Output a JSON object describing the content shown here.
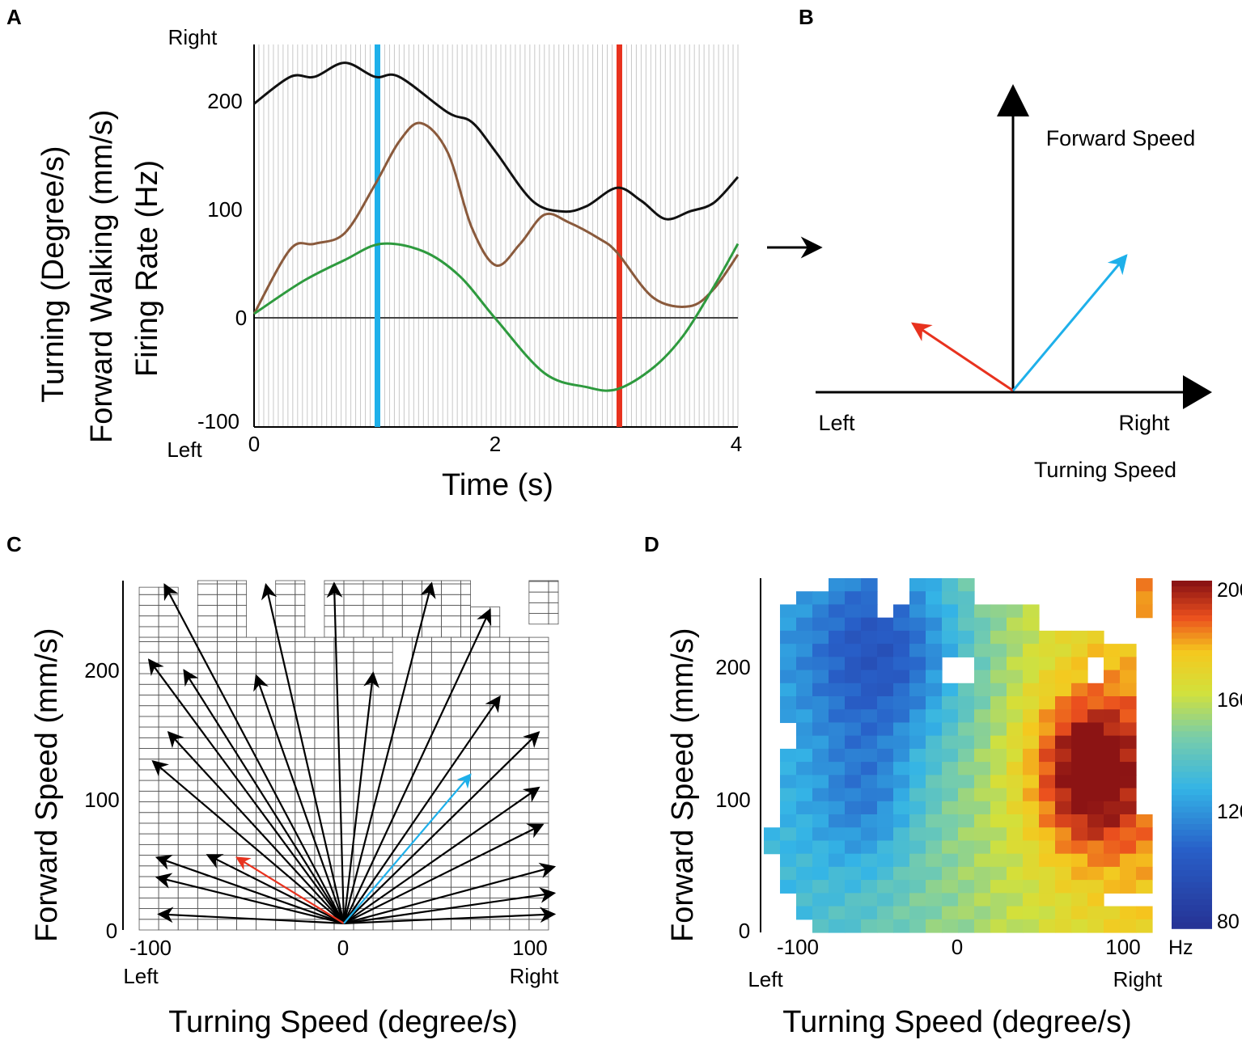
{
  "panels": {
    "a": "A",
    "b": "B",
    "c": "C",
    "d": "D"
  },
  "colors": {
    "firing": "#111111",
    "forward": "#8a5a3c",
    "turning": "#2e9a3e",
    "blue_marker": "#1eb0ea",
    "red_marker": "#e8321e",
    "grid": "#c8c8c8"
  },
  "chart_data": [
    {
      "type": "line",
      "panel": "A",
      "xlabel": "Time (s)",
      "ylabel_lines": [
        {
          "text": "Turning (Degree/s)",
          "color": "#2e9a3e"
        },
        {
          "text": "Forward Walking (mm/s)",
          "color": "#8a5a3c"
        },
        {
          "text": "Firing Rate (Hz)",
          "color": "#111111"
        }
      ],
      "xlim": [
        0,
        4
      ],
      "ylim": [
        -100,
        255
      ],
      "x_ticks": [
        "0",
        "2",
        "4"
      ],
      "y_ticks": [
        "200",
        "100",
        "0",
        "-100"
      ],
      "y_top_label": "Right",
      "y_bottom_label": "Left",
      "markers": [
        {
          "x": 1.02,
          "color": "#1eb0ea"
        },
        {
          "x": 3.02,
          "color": "#e8321e"
        }
      ],
      "series": [
        {
          "color": "#111111",
          "x": [
            0,
            0.3,
            0.5,
            0.75,
            1.0,
            1.2,
            1.6,
            1.8,
            2.0,
            2.3,
            2.55,
            2.75,
            3.0,
            3.2,
            3.4,
            3.6,
            3.8,
            4.0
          ],
          "y": [
            200,
            225,
            225,
            238,
            225,
            225,
            192,
            183,
            155,
            110,
            100,
            105,
            122,
            110,
            93,
            100,
            108,
            132
          ]
        },
        {
          "color": "#8a5a3c",
          "x": [
            0,
            0.3,
            0.5,
            0.75,
            1.0,
            1.2,
            1.38,
            1.6,
            1.8,
            2.0,
            2.2,
            2.4,
            2.6,
            2.85,
            3.0,
            3.3,
            3.6,
            3.8,
            4.0
          ],
          "y": [
            5,
            65,
            70,
            80,
            125,
            165,
            182,
            155,
            85,
            50,
            70,
            97,
            90,
            75,
            62,
            20,
            12,
            28,
            60
          ]
        },
        {
          "color": "#2e9a3e",
          "x": [
            0,
            0.4,
            0.75,
            1.05,
            1.4,
            1.7,
            2.0,
            2.4,
            2.75,
            3.0,
            3.3,
            3.55,
            3.8,
            4.0
          ],
          "y": [
            5,
            35,
            55,
            70,
            63,
            40,
            0,
            -50,
            -63,
            -65,
            -45,
            -15,
            30,
            70
          ]
        }
      ]
    },
    {
      "type": "scatter",
      "panel": "C",
      "xlabel": "Turning Speed (degree/s)",
      "ylabel": "Forward  Speed (mm/s)",
      "xlim": [
        -110,
        110
      ],
      "ylim": [
        0,
        265
      ],
      "x_ticks": [
        "-100",
        "0",
        "100"
      ],
      "y_ticks": [
        "200",
        "100",
        "0"
      ],
      "x_left_label": "Left",
      "x_right_label": "Right",
      "origin": [
        0,
        5
      ],
      "arrows": [
        {
          "x": -92,
          "y": 262,
          "color": "#000000"
        },
        {
          "x": -40,
          "y": 262,
          "color": "#000000"
        },
        {
          "x": -5,
          "y": 263,
          "color": "#000000"
        },
        {
          "x": 45,
          "y": 263,
          "color": "#000000"
        },
        {
          "x": 75,
          "y": 243,
          "color": "#000000"
        },
        {
          "x": -100,
          "y": 205,
          "color": "#000000"
        },
        {
          "x": -82,
          "y": 197,
          "color": "#000000"
        },
        {
          "x": -45,
          "y": 193,
          "color": "#000000"
        },
        {
          "x": 15,
          "y": 195,
          "color": "#000000"
        },
        {
          "x": 80,
          "y": 177,
          "color": "#000000"
        },
        {
          "x": -90,
          "y": 150,
          "color": "#000000"
        },
        {
          "x": -98,
          "y": 128,
          "color": "#000000"
        },
        {
          "x": 100,
          "y": 150,
          "color": "#000000"
        },
        {
          "x": 100,
          "y": 108,
          "color": "#000000"
        },
        {
          "x": 102,
          "y": 80,
          "color": "#000000"
        },
        {
          "x": -96,
          "y": 55,
          "color": "#000000"
        },
        {
          "x": -70,
          "y": 57,
          "color": "#000000"
        },
        {
          "x": -96,
          "y": 40,
          "color": "#000000"
        },
        {
          "x": 108,
          "y": 48,
          "color": "#000000"
        },
        {
          "x": 108,
          "y": 28,
          "color": "#000000"
        },
        {
          "x": -95,
          "y": 12,
          "color": "#000000"
        },
        {
          "x": 108,
          "y": 12,
          "color": "#000000"
        },
        {
          "x": -55,
          "y": 55,
          "color": "#e8321e"
        },
        {
          "x": 65,
          "y": 118,
          "color": "#1eb0ea"
        }
      ]
    },
    {
      "type": "heatmap",
      "panel": "D",
      "xlabel": "Turning Speed (degree/s)",
      "ylabel": "Forward  Speed (mm/s)",
      "xlim": [
        -115,
        115
      ],
      "ylim": [
        0,
        265
      ],
      "x_ticks": [
        "-100",
        "0",
        "100"
      ],
      "y_ticks": [
        "200",
        "100",
        "0"
      ],
      "x_left_label": "Left",
      "x_right_label": "Right",
      "colorbar": {
        "range": [
          80,
          200
        ],
        "ticks": [
          "200",
          "160",
          "120",
          "80"
        ],
        "unit": "Hz"
      },
      "regions": [
        {
          "name": "low firing (dark blue)",
          "turning_range": [
            -80,
            -20
          ],
          "forward_range": [
            50,
            265
          ],
          "value_hz": 90
        },
        {
          "name": "high firing (dark red)",
          "turning_range": [
            60,
            100
          ],
          "forward_range": [
            60,
            170
          ],
          "value_hz": 195
        },
        {
          "name": "right edge top",
          "turning_range": [
            90,
            110
          ],
          "forward_range": [
            230,
            265
          ],
          "value_hz": 160
        }
      ]
    }
  ],
  "diagram_b": {
    "forward_label": "Forward  Speed",
    "left_label": "Left",
    "right_label": "Right",
    "turning_label": "Turning Speed"
  }
}
